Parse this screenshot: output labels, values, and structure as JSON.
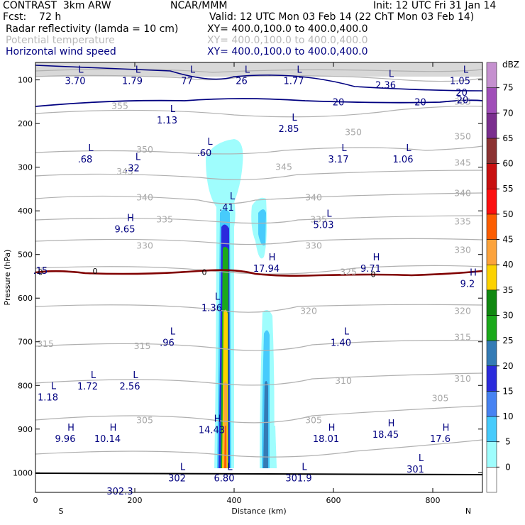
{
  "header": {
    "line1_left": "CONTRAST  3km ARW",
    "line1_mid": "NCAR/MMM",
    "line1_right": "Init: 12 UTC Fri 31 Jan 14",
    "line2_left": "Fcst:    72 h",
    "line2_right": "Valid: 12 UTC Mon 03 Feb 14 (22 ChT Mon 03 Feb 14)",
    "fields": [
      {
        "name": "Radar reflectivity (lamda = 10 cm)",
        "xy": "XY= 400.0,100.0 to 400.0,400.0",
        "style": "black"
      },
      {
        "name": "Potential temperature",
        "xy": "XY= 400.0,100.0 to 400.0,400.0",
        "style": "gray"
      },
      {
        "name": "Horizontal wind speed",
        "xy": "XY= 400.0,100.0 to 400.0,400.0",
        "style": "blue"
      }
    ]
  },
  "colors": {
    "wind_contour": "#000080",
    "theta_contour": "#b0b0b0",
    "zero_line": "#800000",
    "ground": "#000000"
  },
  "chart_data": {
    "type": "cross-section",
    "xlabel": "Distance (km)",
    "ylabel": "Pressure (hPa)",
    "xlim": [
      0,
      900
    ],
    "ylim": [
      1045,
      60
    ],
    "x_ticks": [
      0,
      200,
      400,
      600,
      800
    ],
    "y_ticks": [
      100,
      200,
      300,
      400,
      500,
      600,
      700,
      800,
      900,
      1000
    ],
    "x_end_labels": {
      "left": "S",
      "right": "N"
    },
    "colorbar": {
      "unit": "dBZ",
      "levels": [
        0,
        5,
        10,
        15,
        20,
        25,
        30,
        35,
        40,
        45,
        50,
        55,
        60,
        65,
        70,
        75
      ],
      "colors": [
        "#ffffff",
        "#9ffdfd",
        "#47cbfc",
        "#4783f2",
        "#2b2bdc",
        "#347bb5",
        "#1ba91b",
        "#108810",
        "#fcd200",
        "#fca33c",
        "#fc5d00",
        "#fc1010",
        "#c81010",
        "#8c3232",
        "#7a2e8e",
        "#a04eb8",
        "#c590cf"
      ]
    },
    "theta_contours": [
      {
        "value": 355,
        "label": "355",
        "x": 170,
        "p": 160
      },
      {
        "value": 355,
        "label": "355",
        "x": 860,
        "p": 150
      },
      {
        "value": 350,
        "label": "350",
        "x": 220,
        "p": 260
      },
      {
        "value": 350,
        "label": "350",
        "x": 640,
        "p": 220
      },
      {
        "value": 350,
        "label": "350",
        "x": 860,
        "p": 230
      },
      {
        "value": 345,
        "label": "345",
        "x": 180,
        "p": 310
      },
      {
        "value": 345,
        "label": "345",
        "x": 500,
        "p": 300
      },
      {
        "value": 345,
        "label": "345",
        "x": 860,
        "p": 290
      },
      {
        "value": 340,
        "label": "340",
        "x": 220,
        "p": 370
      },
      {
        "value": 340,
        "label": "340",
        "x": 560,
        "p": 370
      },
      {
        "value": 340,
        "label": "340",
        "x": 860,
        "p": 360
      },
      {
        "value": 335,
        "label": "335",
        "x": 260,
        "p": 420
      },
      {
        "value": 335,
        "label": "335",
        "x": 570,
        "p": 420
      },
      {
        "value": 335,
        "label": "335",
        "x": 860,
        "p": 425
      },
      {
        "value": 330,
        "label": "330",
        "x": 220,
        "p": 480
      },
      {
        "value": 330,
        "label": "330",
        "x": 560,
        "p": 480
      },
      {
        "value": 330,
        "label": "330",
        "x": 860,
        "p": 490
      },
      {
        "value": 325,
        "label": "325",
        "x": 630,
        "p": 540
      },
      {
        "value": 320,
        "label": "320",
        "x": 550,
        "p": 630
      },
      {
        "value": 320,
        "label": "320",
        "x": 860,
        "p": 630
      },
      {
        "value": 315,
        "label": "315",
        "x": 20,
        "p": 705
      },
      {
        "value": 315,
        "label": "315",
        "x": 215,
        "p": 710
      },
      {
        "value": 315,
        "label": "315",
        "x": 860,
        "p": 690
      },
      {
        "value": 310,
        "label": "310",
        "x": 620,
        "p": 790
      },
      {
        "value": 310,
        "label": "310",
        "x": 860,
        "p": 785
      },
      {
        "value": 305,
        "label": "305",
        "x": 220,
        "p": 880
      },
      {
        "value": 305,
        "label": "305",
        "x": 560,
        "p": 880
      },
      {
        "value": 305,
        "label": "305",
        "x": 815,
        "p": 830
      }
    ],
    "extrema": [
      {
        "kind": "L",
        "value": "3.70",
        "x": 80,
        "p": 90
      },
      {
        "kind": "L",
        "value": "1.79",
        "x": 195,
        "p": 90
      },
      {
        "kind": "L",
        "value": "77",
        "x": 305,
        "p": 90
      },
      {
        "kind": "L",
        "value": "26",
        "x": 415,
        "p": 90
      },
      {
        "kind": "L",
        "value": "1.77",
        "x": 520,
        "p": 90
      },
      {
        "kind": "L",
        "value": "2.36",
        "x": 705,
        "p": 100
      },
      {
        "kind": "L",
        "value": "1.05",
        "x": 855,
        "p": 90
      },
      {
        "kind": "L",
        "value": "1.13",
        "x": 265,
        "p": 180
      },
      {
        "kind": "L",
        "value": ".60",
        "x": 340,
        "p": 255
      },
      {
        "kind": "L",
        "value": "2.85",
        "x": 510,
        "p": 200
      },
      {
        "kind": "L",
        "value": ".68",
        "x": 100,
        "p": 270
      },
      {
        "kind": "L",
        "value": ".32",
        "x": 195,
        "p": 290
      },
      {
        "kind": "L",
        "value": "3.17",
        "x": 610,
        "p": 270
      },
      {
        "kind": "L",
        "value": "1.06",
        "x": 740,
        "p": 270
      },
      {
        "kind": "L",
        "value": ".41",
        "x": 385,
        "p": 380
      },
      {
        "kind": "L",
        "value": "5.03",
        "x": 580,
        "p": 420
      },
      {
        "kind": "H",
        "value": "9.65",
        "x": 180,
        "p": 430
      },
      {
        "kind": "H",
        "value": "17.94",
        "x": 465,
        "p": 520
      },
      {
        "kind": "H",
        "value": "9.71",
        "x": 675,
        "p": 520
      },
      {
        "kind": "",
        "value": ".15",
        "x": 10,
        "p": 525
      },
      {
        "kind": "H",
        "value": "9.2",
        "x": 870,
        "p": 555
      },
      {
        "kind": "L",
        "value": "1.36",
        "x": 355,
        "p": 610
      },
      {
        "kind": "L",
        "value": ".96",
        "x": 265,
        "p": 690
      },
      {
        "kind": "L",
        "value": "1.40",
        "x": 615,
        "p": 690
      },
      {
        "kind": "L",
        "value": "1.72",
        "x": 105,
        "p": 790
      },
      {
        "kind": "L",
        "value": "2.56",
        "x": 190,
        "p": 790
      },
      {
        "kind": "L",
        "value": "1.18",
        "x": 25,
        "p": 815
      },
      {
        "kind": "H",
        "value": "14.43",
        "x": 355,
        "p": 890
      },
      {
        "kind": "H",
        "value": "9.96",
        "x": 60,
        "p": 910
      },
      {
        "kind": "H",
        "value": "10.14",
        "x": 145,
        "p": 910
      },
      {
        "kind": "H",
        "value": "18.01",
        "x": 585,
        "p": 910
      },
      {
        "kind": "H",
        "value": "18.45",
        "x": 705,
        "p": 900
      },
      {
        "kind": "H",
        "value": "17.6",
        "x": 815,
        "p": 910
      },
      {
        "kind": "L",
        "value": "301",
        "x": 765,
        "p": 980
      },
      {
        "kind": "L",
        "value": "302",
        "x": 285,
        "p": 1000
      },
      {
        "kind": "L",
        "value": "6.80",
        "x": 380,
        "p": 1000
      },
      {
        "kind": "L",
        "value": "301.9",
        "x": 530,
        "p": 1000
      },
      {
        "kind": "",
        "value": "302.3",
        "x": 170,
        "p": 1030
      }
    ],
    "wind_labels": [
      {
        "label": "20",
        "x": 858,
        "p": 128
      },
      {
        "label": "20",
        "x": 610,
        "p": 150
      },
      {
        "label": "20",
        "x": 775,
        "p": 150
      },
      {
        "label": "20",
        "x": 860,
        "p": 145
      }
    ],
    "zero_labels": [
      {
        "label": "0",
        "x": 10,
        "p": 540
      },
      {
        "label": "0",
        "x": 120,
        "p": 538
      },
      {
        "label": "0",
        "x": 340,
        "p": 540
      },
      {
        "label": "0",
        "x": 680,
        "p": 545
      }
    ]
  }
}
